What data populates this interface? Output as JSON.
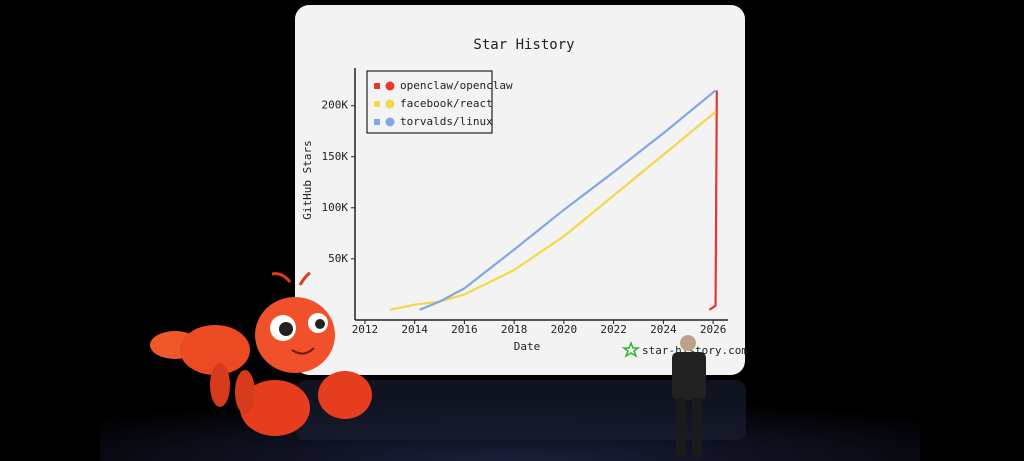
{
  "chart_data": {
    "type": "line",
    "title": "Star History",
    "xlabel": "Date",
    "ylabel": "GitHub Stars",
    "watermark": "star-history.com",
    "legend": "upper left",
    "xlim": [
      2011.6,
      2026.6
    ],
    "xticks": [
      2012,
      2014,
      2016,
      2018,
      2020,
      2022,
      2024,
      2026
    ],
    "ylim": [
      -10000,
      237000
    ],
    "yticks": [
      {
        "value": 50000,
        "label": "50K"
      },
      {
        "value": 100000,
        "label": "100K"
      },
      {
        "value": 150000,
        "label": "150K"
      },
      {
        "value": 200000,
        "label": "200K"
      }
    ],
    "series": [
      {
        "name": "openclaw/openclaw",
        "color": "#e8372c",
        "x": [
          2025.85,
          2026.1,
          2026.15
        ],
        "values": [
          0,
          4000,
          215000
        ]
      },
      {
        "name": "facebook/react",
        "color": "#f4d84a",
        "x": [
          2013.0,
          2014.0,
          2015.0,
          2016.0,
          2018.0,
          2020.0,
          2022.0,
          2024.0,
          2026.1
        ],
        "values": [
          0,
          5000,
          8000,
          15000,
          39000,
          72000,
          112000,
          152000,
          194000
        ]
      },
      {
        "name": "torvalds/linux",
        "color": "#7fa7e2",
        "x": [
          2014.2,
          2015.0,
          2016.0,
          2018.0,
          2020.0,
          2022.0,
          2024.0,
          2026.1
        ],
        "values": [
          0,
          8000,
          21000,
          59000,
          98000,
          135000,
          173000,
          215000
        ]
      }
    ]
  }
}
